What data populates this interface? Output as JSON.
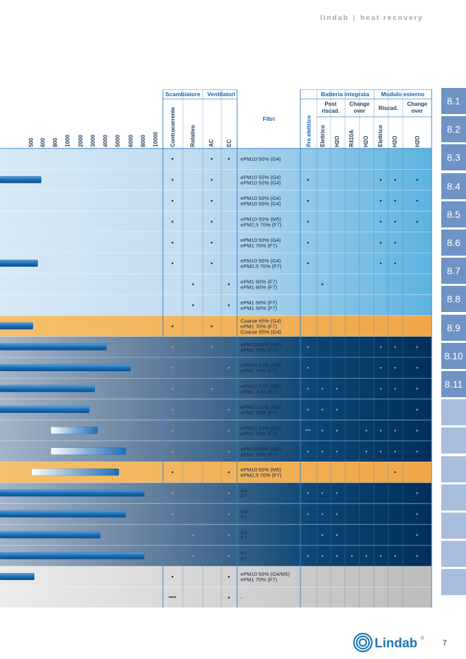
{
  "header": {
    "brand": "lindab",
    "separator": "|",
    "section": "heat recovery"
  },
  "table": {
    "group_headers": [
      "Scambiatore",
      "Ventilatori",
      "Batteria integrata",
      "Modulo esterno"
    ],
    "sub_headers": [
      "Post riscad.",
      "Change over",
      "Riscad.",
      "Change over"
    ],
    "scale_labels": [
      "500",
      "600",
      "800",
      "1000",
      "2000",
      "3000",
      "4000",
      "5000",
      "6000",
      "8000",
      "10000"
    ],
    "column_labels": [
      "Controcorrente",
      "Rotativo",
      "AC",
      "EC",
      "Filtri",
      "Pre elettrico",
      "Elettrico",
      "H2O",
      "R410A",
      "H2O",
      "Elettrico",
      "H2O",
      "H2O"
    ],
    "rows": [
      {
        "filters": [
          "ePM10 50% (G4)"
        ],
        "marks": [
          "•",
          "",
          "•",
          "•",
          "",
          "",
          "",
          "",
          "",
          "",
          "",
          ""
        ]
      },
      {
        "filters": [
          "ePM10 50% (G4)",
          "ePM10 50% (G4)"
        ],
        "marks": [
          "•",
          "",
          "•",
          "",
          "•",
          "",
          "",
          "",
          "",
          "•",
          "•",
          "•"
        ]
      },
      {
        "filters": [
          "ePM10 50% (G4)",
          "ePM10 50% (G4)"
        ],
        "marks": [
          "•",
          "",
          "•",
          "",
          "•",
          "",
          "",
          "",
          "",
          "•",
          "•",
          "•"
        ]
      },
      {
        "filters": [
          "ePM10 50% (M5)",
          "ePM2,5 70% (F7)"
        ],
        "marks": [
          "•",
          "",
          "•",
          "",
          "•",
          "",
          "",
          "",
          "",
          "•",
          "•",
          "•"
        ]
      },
      {
        "filters": [
          "ePM10 50% (G4)",
          "ePM1 70% (F7)"
        ],
        "marks": [
          "•",
          "",
          "•",
          "",
          "•",
          "",
          "",
          "",
          "",
          "•",
          "•",
          ""
        ]
      },
      {
        "filters": [
          "ePM10 50% (G4)",
          "ePM2,5 70% (F7)"
        ],
        "marks": [
          "•",
          "",
          "•",
          "",
          "•",
          "",
          "",
          "",
          "",
          "•",
          "•",
          ""
        ]
      },
      {
        "filters": [
          "ePM1 60% (F7)",
          "ePM1 60% (F7)"
        ],
        "marks": [
          "",
          "•",
          "",
          "•",
          "",
          "•",
          "",
          "",
          "",
          "",
          "",
          ""
        ]
      },
      {
        "filters": [
          "ePM1 50% (F7)",
          "ePM1 50% (F7)"
        ],
        "marks": [
          "",
          "•",
          "",
          "•",
          "",
          "",
          "",
          "",
          "",
          "",
          "",
          ""
        ]
      },
      {
        "filters": [
          "Coarse 65% (G4)",
          "ePM1 70% (F7)",
          "Coarse 65% (G4)"
        ],
        "marks": [
          "•",
          "",
          "•",
          "",
          "",
          "",
          "",
          "",
          "",
          "",
          "",
          ""
        ]
      },
      {
        "filters": [
          "ePM10 50% (M5)",
          "ePM1 70% (F7)"
        ],
        "marks": [
          "•",
          "",
          "•",
          "",
          "•",
          "",
          "",
          "",
          "",
          "•",
          "•",
          "•"
        ]
      },
      {
        "filters": [
          "ePM10 50% (M5)",
          "ePM1 70% (F7)"
        ],
        "marks": [
          "•",
          "",
          "",
          "•",
          "•",
          "",
          "",
          "",
          "",
          "•",
          "•",
          "•"
        ]
      },
      {
        "filters": [
          "ePM10 50% (M5)",
          "ePM1 70% (F7)"
        ],
        "marks": [
          "•",
          "",
          "•",
          "",
          "•",
          "•",
          "•",
          "",
          "",
          "•",
          "•",
          "•"
        ]
      },
      {
        "filters": [
          "ePM10 50% (M5)",
          "ePM1 70% (F7)"
        ],
        "marks": [
          "•",
          "",
          "",
          "•",
          "•",
          "•",
          "•",
          "",
          "",
          "",
          "",
          "•"
        ]
      },
      {
        "filters": [
          "ePM10 50% (M5)",
          "ePM1 70% (F7)"
        ],
        "marks": [
          "•",
          "",
          "",
          "•",
          "***",
          "•",
          "•",
          "",
          "•",
          "•",
          "•",
          "•"
        ]
      },
      {
        "filters": [
          "ePM10 50% (M5)",
          "ePM1 70% (F7)"
        ],
        "marks": [
          "•",
          "",
          "",
          "•",
          "•",
          "•",
          "•",
          "",
          "•",
          "•",
          "•",
          "•"
        ]
      },
      {
        "filters": [
          "ePM10 50% (M5)",
          "ePM2,5 70% (F7)"
        ],
        "marks": [
          "•",
          "",
          "",
          "•",
          "",
          "",
          "",
          "",
          "",
          "",
          "•",
          ""
        ]
      },
      {
        "filters": [
          "G4",
          "F7"
        ],
        "marks": [
          "•",
          "",
          "",
          "•",
          "•",
          "•",
          "•",
          "",
          "",
          "",
          "",
          "•"
        ]
      },
      {
        "filters": [
          "G4",
          "F7"
        ],
        "marks": [
          "•",
          "",
          "",
          "•",
          "•",
          "•",
          "•",
          "",
          "",
          "",
          "",
          "•"
        ]
      },
      {
        "filters": [
          "G4",
          "F7"
        ],
        "marks": [
          "",
          "•",
          "",
          "•",
          "",
          "•",
          "•",
          "",
          "",
          "",
          "",
          "•"
        ]
      },
      {
        "filters": [
          "F7",
          "F7"
        ],
        "marks": [
          "",
          "•",
          "",
          "•",
          "•",
          "•",
          "•",
          "•",
          "•",
          "•",
          "•",
          "•"
        ]
      },
      {
        "filters": [
          "ePM10 50% (G4/M5)",
          "ePM1 70% (F7)"
        ],
        "marks": [
          "•",
          "",
          "",
          "•",
          "",
          "",
          "",
          "",
          "",
          "",
          "",
          ""
        ]
      },
      {
        "filters": [
          "-"
        ],
        "marks": [
          "****",
          "",
          "",
          "•",
          "",
          "",
          "",
          "",
          "",
          "",
          "",
          ""
        ]
      }
    ]
  },
  "nav": {
    "items": [
      "8.1",
      "8.2",
      "8.3",
      "8.4",
      "8.5",
      "8.6",
      "8.7",
      "8.8",
      "8.9",
      "8.10",
      "8.11",
      "",
      "",
      "",
      "",
      "",
      "",
      ""
    ]
  },
  "footer": {
    "brand": "Lindab",
    "registered": "®",
    "page_number": "7"
  }
}
